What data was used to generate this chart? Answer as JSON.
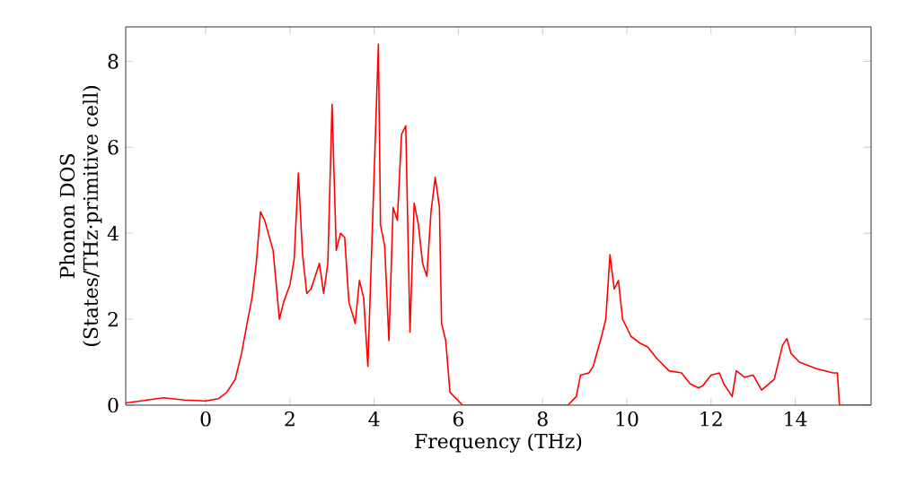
{
  "chart_data": {
    "type": "line",
    "xlabel": "Frequency (THz)",
    "ylabel": "Phonon DOS\n(States/THz·primitive cell)",
    "x": [
      -1.9,
      -1,
      -0.5,
      0,
      0.3,
      0.5,
      0.7,
      0.85,
      1.0,
      1.1,
      1.2,
      1.3,
      1.4,
      1.6,
      1.75,
      1.85,
      2.0,
      2.1,
      2.2,
      2.3,
      2.4,
      2.5,
      2.7,
      2.8,
      2.9,
      3.0,
      3.1,
      3.2,
      3.3,
      3.4,
      3.55,
      3.65,
      3.75,
      3.85,
      4.1,
      4.15,
      4.25,
      4.35,
      4.45,
      4.55,
      4.65,
      4.75,
      4.85,
      4.95,
      5.05,
      5.15,
      5.25,
      5.35,
      5.45,
      5.55,
      5.6,
      5.7,
      5.8,
      6.0,
      6.1,
      8.6,
      8.8,
      8.9,
      9.1,
      9.2,
      9.4,
      9.5,
      9.6,
      9.7,
      9.8,
      9.9,
      10.1,
      10.3,
      10.5,
      10.7,
      11.0,
      11.3,
      11.5,
      11.7,
      11.8,
      12.0,
      12.2,
      12.3,
      12.5,
      12.6,
      12.8,
      13.0,
      13.2,
      13.5,
      13.7,
      13.8,
      13.9,
      14.1,
      14.5,
      14.9,
      15.0,
      15.05,
      15.8
    ],
    "series": [
      {
        "color": "#ff0000",
        "values": [
          0.05,
          0.17,
          0.12,
          0.1,
          0.15,
          0.3,
          0.6,
          1.2,
          2.0,
          2.5,
          3.3,
          4.5,
          4.3,
          3.6,
          2.0,
          2.4,
          2.8,
          3.4,
          5.4,
          3.5,
          2.6,
          2.7,
          3.3,
          2.6,
          3.3,
          7.0,
          3.6,
          4.0,
          3.9,
          2.4,
          1.9,
          2.9,
          2.5,
          0.9,
          8.4,
          4.2,
          3.7,
          1.5,
          4.6,
          4.3,
          6.3,
          6.5,
          1.7,
          4.7,
          4.2,
          3.3,
          3.0,
          4.5,
          5.3,
          4.6,
          1.9,
          1.5,
          0.3,
          0.1,
          0,
          0,
          0.2,
          0.7,
          0.75,
          0.9,
          1.6,
          2.0,
          3.5,
          2.7,
          2.9,
          2.0,
          1.6,
          1.45,
          1.35,
          1.1,
          0.8,
          0.75,
          0.5,
          0.4,
          0.45,
          0.7,
          0.75,
          0.5,
          0.2,
          0.8,
          0.65,
          0.7,
          0.35,
          0.6,
          1.4,
          1.55,
          1.2,
          1.0,
          0.85,
          0.75,
          0.75,
          0,
          0
        ]
      }
    ],
    "xlim": [
      -1.9,
      15.8
    ],
    "ylim": [
      0,
      8.8
    ],
    "xticks": [
      0,
      2,
      4,
      6,
      8,
      10,
      12,
      14
    ],
    "yticks": [
      0,
      2,
      4,
      6,
      8
    ],
    "grid": false,
    "marker": "none",
    "line_style": "solid"
  }
}
